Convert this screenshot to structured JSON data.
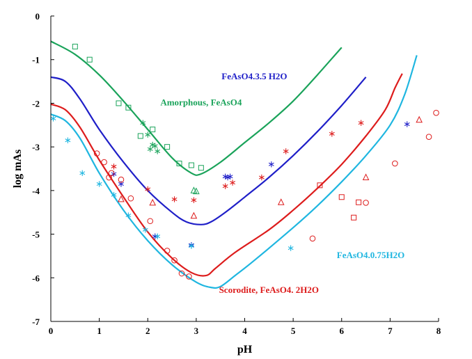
{
  "chart_data": {
    "type": "scatter",
    "title": "",
    "xlabel": "pH",
    "ylabel": "log mAs",
    "xlim": [
      0,
      8
    ],
    "ylim": [
      -7,
      0
    ],
    "xticks": [
      "0",
      "1",
      "2",
      "3",
      "4",
      "5",
      "6",
      "7",
      "8"
    ],
    "yticks": [
      "0",
      "-1",
      "-2",
      "-3",
      "-4",
      "-5",
      "-6",
      "-7"
    ],
    "grid": false,
    "curves": [
      {
        "name": "Amorphous, FeAsO4",
        "color": "#1aa35a",
        "x": [
          0,
          0.5,
          1.0,
          1.5,
          2.0,
          2.5,
          2.9,
          3.1,
          3.5,
          4.0,
          4.5,
          5.0,
          5.5,
          6.0
        ],
        "y": [
          -0.58,
          -0.88,
          -1.35,
          -1.95,
          -2.6,
          -3.25,
          -3.6,
          -3.62,
          -3.35,
          -2.9,
          -2.45,
          -1.95,
          -1.35,
          -0.72
        ]
      },
      {
        "name": "FeAsO4.3.5 H2O",
        "color": "#1f1fc8",
        "x": [
          0,
          0.3,
          0.6,
          1.0,
          1.5,
          2.0,
          2.5,
          2.8,
          3.1,
          3.3,
          3.6,
          4.0,
          4.5,
          5.0,
          5.5,
          6.0,
          6.5
        ],
        "y": [
          -1.4,
          -1.5,
          -1.9,
          -2.6,
          -3.35,
          -4.0,
          -4.5,
          -4.72,
          -4.78,
          -4.72,
          -4.5,
          -4.15,
          -3.7,
          -3.2,
          -2.65,
          -2.05,
          -1.4
        ]
      },
      {
        "name": "Scorodite, FeAsO4. 2H2O",
        "color": "#dd1c1c",
        "x": [
          0,
          0.3,
          0.6,
          1.0,
          1.5,
          2.0,
          2.5,
          2.9,
          3.2,
          3.4,
          3.8,
          4.5,
          5.0,
          5.5,
          6.0,
          6.5,
          6.9,
          7.1,
          7.25
        ],
        "y": [
          -2.02,
          -2.15,
          -2.55,
          -3.3,
          -4.15,
          -4.95,
          -5.55,
          -5.88,
          -5.95,
          -5.78,
          -5.42,
          -4.9,
          -4.45,
          -3.95,
          -3.4,
          -2.75,
          -2.15,
          -1.65,
          -1.32
        ]
      },
      {
        "name": "FeAsO4.0.75H2O",
        "color": "#1fb6e0",
        "x": [
          0,
          0.3,
          0.6,
          1.0,
          1.5,
          2.0,
          2.5,
          3.0,
          3.3,
          3.5,
          3.8,
          4.2,
          5.0,
          5.5,
          6.0,
          6.5,
          7.0,
          7.3,
          7.55
        ],
        "y": [
          -2.25,
          -2.4,
          -2.8,
          -3.6,
          -4.45,
          -5.15,
          -5.7,
          -6.1,
          -6.22,
          -6.2,
          -5.95,
          -5.6,
          -4.85,
          -4.35,
          -3.8,
          -3.2,
          -2.5,
          -1.8,
          -0.9
        ]
      }
    ],
    "series": [
      {
        "color": "#1aa35a",
        "marker": "square",
        "x": [
          0.5,
          0.8,
          1.4,
          1.6,
          1.85,
          2.1,
          2.4,
          2.65,
          2.9,
          3.1
        ],
        "y": [
          -0.7,
          -1.0,
          -2.0,
          -2.1,
          -2.75,
          -2.6,
          -3.0,
          -3.38,
          -3.42,
          -3.48
        ]
      },
      {
        "color": "#1aa35a",
        "marker": "asterisk",
        "x": [
          1.9,
          2.0,
          2.05,
          2.1,
          2.15,
          2.2
        ],
        "y": [
          -2.45,
          -2.72,
          -3.05,
          -2.95,
          -2.98,
          -3.1
        ]
      },
      {
        "color": "#1aa35a",
        "marker": "triangle",
        "x": [
          2.95,
          3.0
        ],
        "y": [
          -4.0,
          -4.02
        ]
      },
      {
        "color": "#1f1fc8",
        "marker": "asterisk",
        "x": [
          1.3,
          1.45,
          2.15,
          2.9,
          3.6,
          3.65,
          3.7,
          4.55,
          7.35
        ],
        "y": [
          -3.62,
          -3.85,
          -5.05,
          -5.25,
          -3.68,
          -3.7,
          -3.68,
          -3.4,
          -2.48
        ]
      },
      {
        "color": "#dd1c1c",
        "marker": "circle",
        "x": [
          0.95,
          1.1,
          1.2,
          1.25,
          1.45,
          1.65,
          2.05,
          2.4,
          2.55,
          2.7,
          2.85,
          5.4,
          6.5,
          7.1,
          7.8,
          7.95
        ],
        "y": [
          -3.15,
          -3.35,
          -3.7,
          -3.6,
          -3.75,
          -4.18,
          -4.7,
          -5.38,
          -5.6,
          -5.9,
          -5.97,
          -5.1,
          -4.28,
          -3.38,
          -2.77,
          -2.22
        ]
      },
      {
        "color": "#dd1c1c",
        "marker": "triangle",
        "x": [
          1.45,
          2.1,
          2.95,
          4.75,
          6.5,
          7.6
        ],
        "y": [
          -4.2,
          -4.28,
          -4.58,
          -4.27,
          -3.7,
          -2.38
        ]
      },
      {
        "color": "#dd1c1c",
        "marker": "asterisk",
        "x": [
          1.3,
          2.0,
          2.55,
          2.95,
          3.6,
          3.75,
          4.35,
          4.85,
          5.8,
          6.4
        ],
        "y": [
          -3.45,
          -3.97,
          -4.2,
          -4.22,
          -3.9,
          -3.82,
          -3.7,
          -3.1,
          -2.7,
          -2.45
        ]
      },
      {
        "color": "#dd1c1c",
        "marker": "square",
        "x": [
          5.55,
          6.0,
          6.25,
          6.35
        ],
        "y": [
          -3.88,
          -4.15,
          -4.62,
          -4.27
        ]
      },
      {
        "color": "#1fb6e0",
        "marker": "asterisk",
        "x": [
          0.05,
          0.35,
          0.65,
          1.0,
          1.3,
          1.6,
          1.95,
          2.2,
          2.9,
          4.95
        ],
        "y": [
          -2.35,
          -2.85,
          -3.6,
          -3.85,
          -4.1,
          -4.57,
          -4.9,
          -5.05,
          -5.27,
          -5.32
        ]
      }
    ],
    "annotations": [
      {
        "text": "FeAsO4.3.5 H2O",
        "x": 4.2,
        "y": -1.45,
        "color": "#1f1fc8"
      },
      {
        "text": "Amorphous, FeAsO4",
        "x": 3.1,
        "y": -2.05,
        "color": "#1aa35a"
      },
      {
        "text": "FeAsO4.0.75H2O",
        "x": 6.6,
        "y": -5.55,
        "color": "#1fb6e0"
      },
      {
        "text": "Scorodite, FeAsO4. 2H2O",
        "x": 4.5,
        "y": -6.35,
        "color": "#dd1c1c"
      }
    ]
  }
}
